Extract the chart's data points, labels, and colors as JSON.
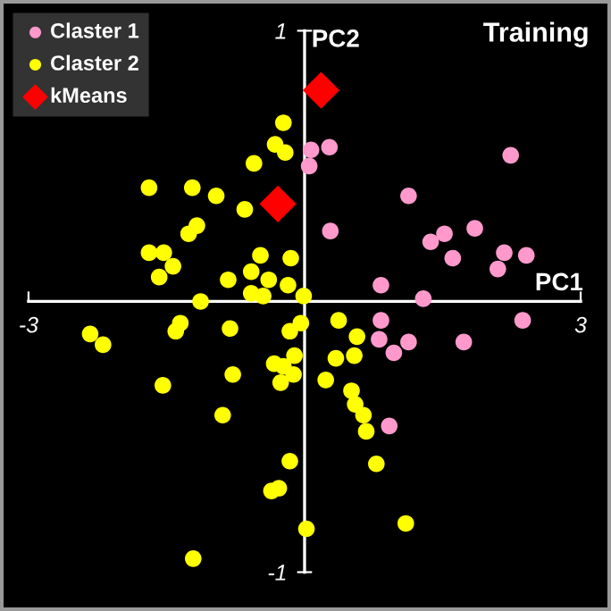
{
  "chart_data": {
    "type": "scatter",
    "title": "Training",
    "xlabel": "PC1",
    "ylabel": "PC2",
    "xlim": [
      -3.27,
      3.29
    ],
    "ylim": [
      -1.13,
      1.1
    ],
    "xticks": [
      -3,
      3
    ],
    "yticks": [
      -1,
      1
    ],
    "grid": false,
    "legend": "top left",
    "series": [
      {
        "name": "Claster 1",
        "color": "#ff99cc",
        "marker": "circle",
        "x": [
          0.07,
          0.27,
          0.05,
          2.24,
          1.13,
          0.28,
          1.85,
          1.52,
          1.37,
          1.61,
          2.17,
          2.41,
          2.1,
          0.83,
          1.29,
          0.83,
          2.37,
          0.81,
          0.97,
          1.13,
          1.73,
          0.92
        ],
        "values": [
          0.56,
          0.57,
          0.5,
          0.54,
          0.39,
          0.26,
          0.27,
          0.25,
          0.22,
          0.16,
          0.18,
          0.17,
          0.12,
          0.06,
          0.01,
          -0.07,
          -0.07,
          -0.14,
          -0.19,
          -0.15,
          -0.15,
          -0.46
        ]
      },
      {
        "name": "Claster 2",
        "color": "#ffff00",
        "marker": "circle",
        "x": [
          -0.23,
          -0.32,
          -0.21,
          -0.55,
          -1.69,
          -1.22,
          -0.96,
          -0.65,
          -1.17,
          -1.26,
          -1.69,
          -1.53,
          -1.43,
          -1.58,
          -0.48,
          -0.15,
          -0.58,
          -0.39,
          -0.83,
          -0.18,
          -0.58,
          -0.45,
          -1.13,
          -0.01,
          -2.33,
          -2.19,
          -1.4,
          -1.35,
          -0.81,
          -0.04,
          -0.16,
          -0.11,
          -0.33,
          -0.23,
          -0.12,
          -0.26,
          -0.78,
          -1.54,
          -0.89,
          -0.16,
          -0.36,
          -0.28,
          0.02,
          -1.21,
          0.37,
          0.57,
          0.34,
          0.54,
          0.23,
          0.51,
          0.55,
          0.64,
          0.67,
          0.78,
          1.1
        ],
        "values": [
          0.66,
          0.58,
          0.55,
          0.51,
          0.42,
          0.42,
          0.39,
          0.34,
          0.28,
          0.25,
          0.18,
          0.18,
          0.13,
          0.09,
          0.17,
          0.16,
          0.11,
          0.08,
          0.08,
          0.06,
          0.03,
          0.02,
          0.0,
          0.02,
          -0.12,
          -0.16,
          -0.11,
          -0.08,
          -0.1,
          -0.08,
          -0.11,
          -0.2,
          -0.23,
          -0.24,
          -0.27,
          -0.3,
          -0.27,
          -0.31,
          -0.42,
          -0.59,
          -0.7,
          -0.69,
          -0.84,
          -0.95,
          -0.07,
          -0.13,
          -0.21,
          -0.2,
          -0.29,
          -0.33,
          -0.38,
          -0.42,
          -0.48,
          -0.6,
          -0.82
        ]
      },
      {
        "name": "kMeans",
        "color": "#ff0000",
        "marker": "diamond",
        "x": [
          0.18,
          -0.29
        ],
        "values": [
          0.78,
          0.36
        ]
      }
    ]
  }
}
